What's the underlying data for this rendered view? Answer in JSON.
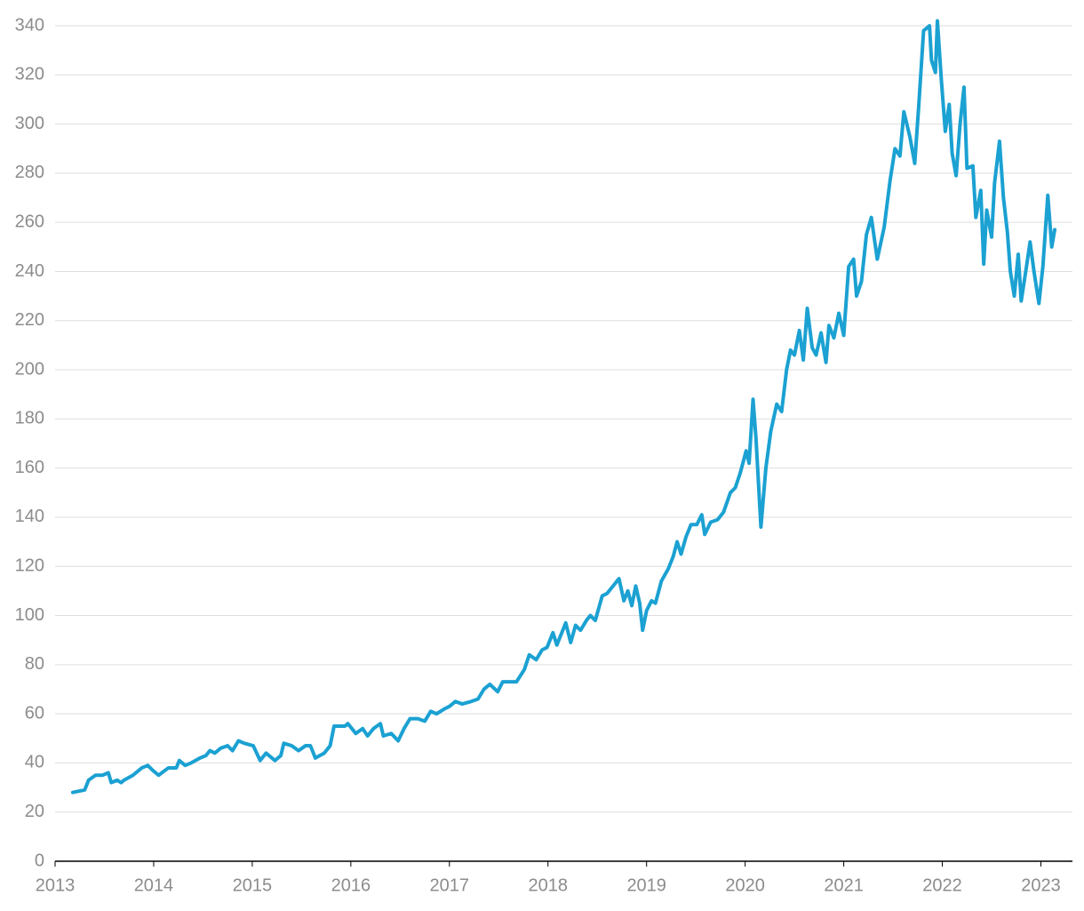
{
  "chart_data": {
    "type": "line",
    "color": "#1ba1d2",
    "grid": true,
    "xlim": [
      2013,
      2023.32
    ],
    "xticks": [
      2013,
      2014,
      2015,
      2016,
      2017,
      2018,
      2019,
      2020,
      2021,
      2022,
      2023
    ],
    "ylim": [
      0,
      340
    ],
    "yticks": [
      0,
      20,
      40,
      60,
      80,
      100,
      120,
      140,
      160,
      180,
      200,
      220,
      240,
      260,
      280,
      300,
      320,
      340
    ],
    "x": [
      2013.18,
      2013.3,
      2013.34,
      2013.41,
      2013.48,
      2013.54,
      2013.57,
      2013.63,
      2013.67,
      2013.7,
      2013.79,
      2013.88,
      2013.94,
      2013.99,
      2014.05,
      2014.15,
      2014.23,
      2014.26,
      2014.32,
      2014.38,
      2014.47,
      2014.53,
      2014.57,
      2014.62,
      2014.68,
      2014.75,
      2014.8,
      2014.86,
      2014.92,
      2015.01,
      2015.08,
      2015.14,
      2015.23,
      2015.29,
      2015.32,
      2015.4,
      2015.47,
      2015.54,
      2015.59,
      2015.64,
      2015.73,
      2015.79,
      2015.83,
      2015.94,
      2015.97,
      2016.05,
      2016.12,
      2016.17,
      2016.23,
      2016.3,
      2016.33,
      2016.41,
      2016.48,
      2016.54,
      2016.6,
      2016.68,
      2016.75,
      2016.81,
      2016.87,
      2016.95,
      2017.0,
      2017.06,
      2017.13,
      2017.22,
      2017.29,
      2017.35,
      2017.41,
      2017.49,
      2017.54,
      2017.62,
      2017.68,
      2017.76,
      2017.81,
      2017.88,
      2017.94,
      2017.99,
      2018.05,
      2018.09,
      2018.14,
      2018.18,
      2018.23,
      2018.28,
      2018.33,
      2018.39,
      2018.43,
      2018.48,
      2018.55,
      2018.6,
      2018.66,
      2018.72,
      2018.77,
      2018.81,
      2018.85,
      2018.89,
      2018.93,
      2018.96,
      2019.0,
      2019.05,
      2019.09,
      2019.15,
      2019.22,
      2019.27,
      2019.31,
      2019.35,
      2019.4,
      2019.45,
      2019.51,
      2019.56,
      2019.59,
      2019.65,
      2019.72,
      2019.78,
      2019.85,
      2019.9,
      2019.95,
      2020.01,
      2020.04,
      2020.08,
      2020.11,
      2020.16,
      2020.21,
      2020.26,
      2020.32,
      2020.37,
      2020.42,
      2020.46,
      2020.5,
      2020.55,
      2020.59,
      2020.63,
      2020.68,
      2020.72,
      2020.77,
      2020.82,
      2020.85,
      2020.9,
      2020.95,
      2021.0,
      2021.05,
      2021.1,
      2021.13,
      2021.18,
      2021.23,
      2021.28,
      2021.34,
      2021.41,
      2021.47,
      2021.52,
      2021.57,
      2021.61,
      2021.67,
      2021.72,
      2021.76,
      2021.81,
      2021.87,
      2021.89,
      2021.93,
      2021.95,
      2021.99,
      2022.03,
      2022.07,
      2022.1,
      2022.14,
      2022.18,
      2022.22,
      2022.25,
      2022.31,
      2022.34,
      2022.39,
      2022.42,
      2022.45,
      2022.5,
      2022.53,
      2022.58,
      2022.62,
      2022.66,
      2022.69,
      2022.73,
      2022.77,
      2022.8,
      2022.85,
      2022.89,
      2022.93,
      2022.98,
      2023.02,
      2023.07,
      2023.11,
      2023.14
    ],
    "values": [
      28,
      29,
      33,
      35,
      35,
      36,
      32,
      33,
      32,
      33,
      35,
      38,
      39,
      37,
      35,
      38,
      38,
      41,
      39,
      40,
      42,
      43,
      45,
      44,
      46,
      47,
      45,
      49,
      48,
      47,
      41,
      44,
      41,
      43,
      48,
      47,
      45,
      47,
      47,
      42,
      44,
      47,
      55,
      55,
      56,
      52,
      54,
      51,
      54,
      56,
      51,
      52,
      49,
      54,
      58,
      58,
      57,
      61,
      60,
      62,
      63,
      65,
      64,
      65,
      66,
      70,
      72,
      69,
      73,
      73,
      73,
      78,
      84,
      82,
      86,
      87,
      93,
      88,
      93,
      97,
      89,
      96,
      94,
      98,
      100,
      98,
      108,
      109,
      112,
      115,
      106,
      110,
      104,
      112,
      105,
      94,
      102,
      106,
      105,
      114,
      119,
      124,
      130,
      125,
      132,
      137,
      137,
      141,
      133,
      138,
      139,
      142,
      150,
      152,
      158,
      167,
      162,
      188,
      172,
      136,
      160,
      175,
      186,
      183,
      200,
      208,
      206,
      216,
      204,
      225,
      209,
      206,
      215,
      203,
      218,
      213,
      223,
      214,
      242,
      245,
      230,
      236,
      255,
      262,
      245,
      258,
      277,
      290,
      287,
      305,
      295,
      284,
      307,
      338,
      340,
      326,
      321,
      342,
      318,
      297,
      308,
      288,
      279,
      300,
      315,
      282,
      283,
      262,
      273,
      243,
      265,
      254,
      276,
      293,
      270,
      256,
      240,
      230,
      247,
      228,
      241,
      252,
      240,
      227,
      242,
      271,
      250,
      257
    ]
  }
}
